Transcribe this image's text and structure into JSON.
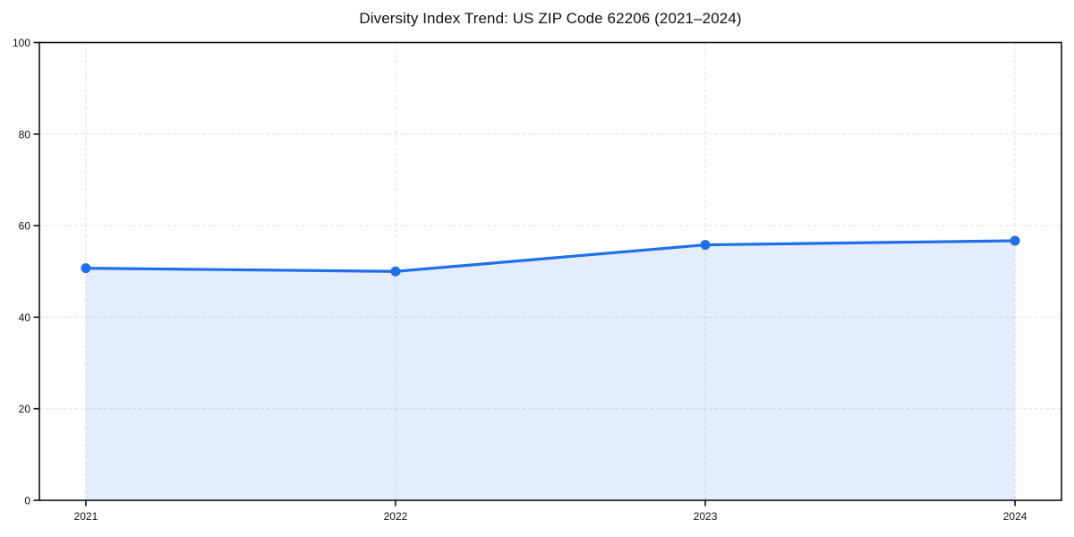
{
  "page": {
    "background_color": "#ffffff"
  },
  "chart_data": {
    "type": "area",
    "title": "Diversity Index Trend: US ZIP Code 62206 (2021–2024)",
    "x": [
      2021,
      2022,
      2023,
      2024
    ],
    "xtick_labels": [
      "2021",
      "2022",
      "2023",
      "2024"
    ],
    "series": [
      {
        "name": "Diversity Index",
        "values": [
          50.7,
          50.0,
          55.8,
          56.7
        ]
      }
    ],
    "xlabel": "",
    "ylabel": "",
    "xlim": [
      2020.85,
      2024.15
    ],
    "ylim": [
      0,
      100
    ],
    "yticks": [
      0,
      20,
      40,
      60,
      80,
      100
    ],
    "grid": true,
    "grid_style": "dashed",
    "legend": false,
    "colors": {
      "line": "#1f6feb",
      "marker": "#1f6feb",
      "fill": "#1f6feb",
      "fill_opacity": 0.12,
      "grid": "#e2e2e2",
      "spine": "#111111",
      "tick_label": "#111111",
      "title": "#111111"
    }
  }
}
